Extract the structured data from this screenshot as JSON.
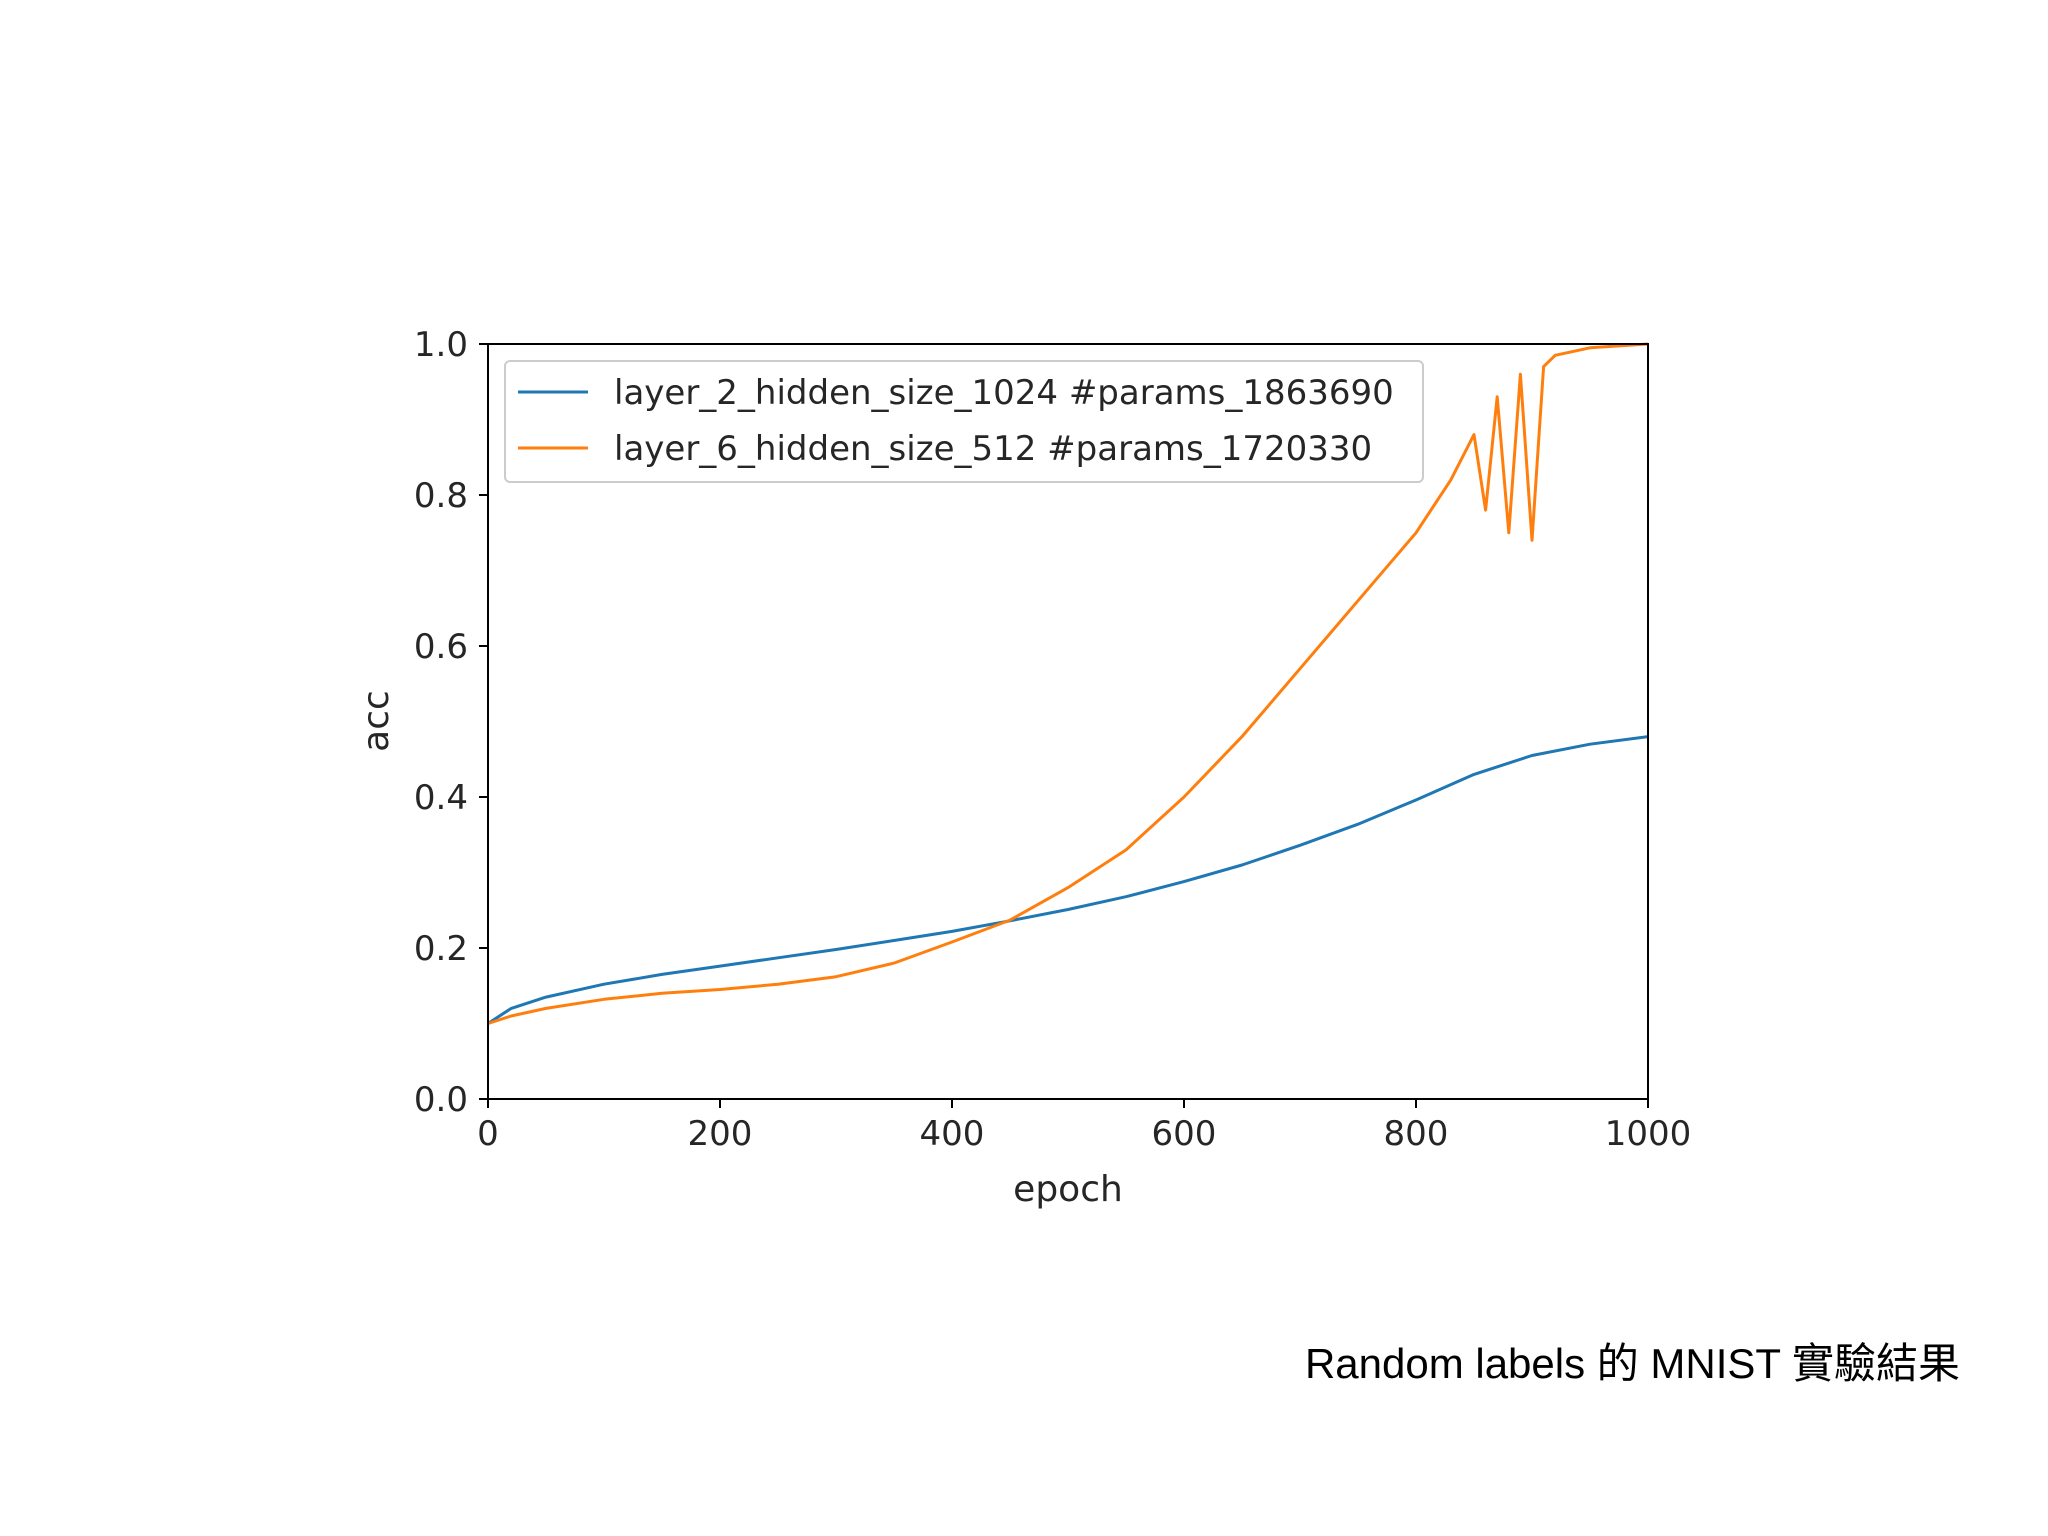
{
  "caption": "Random labels 的 MNIST 實驗結果",
  "chart_data": {
    "type": "line",
    "title": "",
    "xlabel": "epoch",
    "ylabel": "acc",
    "xlim": [
      0,
      1000
    ],
    "ylim": [
      0.0,
      1.0
    ],
    "xticks": [
      0,
      200,
      400,
      600,
      800,
      1000
    ],
    "xtick_labels": [
      "0",
      "200",
      "400",
      "600",
      "800",
      "1000"
    ],
    "yticks": [
      0.0,
      0.2,
      0.4,
      0.6,
      0.8,
      1.0
    ],
    "ytick_labels": [
      "0.0",
      "0.2",
      "0.4",
      "0.6",
      "0.8",
      "1.0"
    ],
    "grid": false,
    "legend_position": "upper-left",
    "series": [
      {
        "name": "layer_2_hidden_size_1024 #params_1863690",
        "color": "#1f77b4",
        "x": [
          0,
          20,
          50,
          100,
          150,
          200,
          250,
          300,
          350,
          400,
          450,
          500,
          550,
          600,
          650,
          700,
          750,
          800,
          850,
          900,
          950,
          1000
        ],
        "y": [
          0.1,
          0.12,
          0.135,
          0.152,
          0.165,
          0.176,
          0.187,
          0.198,
          0.21,
          0.222,
          0.236,
          0.251,
          0.268,
          0.288,
          0.31,
          0.336,
          0.364,
          0.396,
          0.43,
          0.455,
          0.47,
          0.48
        ]
      },
      {
        "name": "layer_6_hidden_size_512 #params_1720330",
        "color": "#ff7f0e",
        "x": [
          0,
          20,
          50,
          100,
          150,
          200,
          250,
          300,
          350,
          400,
          450,
          500,
          550,
          600,
          650,
          700,
          750,
          800,
          830,
          850,
          860,
          870,
          880,
          890,
          900,
          910,
          920,
          950,
          1000
        ],
        "y": [
          0.1,
          0.11,
          0.12,
          0.132,
          0.14,
          0.145,
          0.152,
          0.162,
          0.18,
          0.208,
          0.237,
          0.28,
          0.33,
          0.4,
          0.48,
          0.57,
          0.66,
          0.75,
          0.82,
          0.88,
          0.78,
          0.93,
          0.75,
          0.96,
          0.74,
          0.97,
          0.985,
          0.995,
          1.0
        ]
      }
    ]
  }
}
